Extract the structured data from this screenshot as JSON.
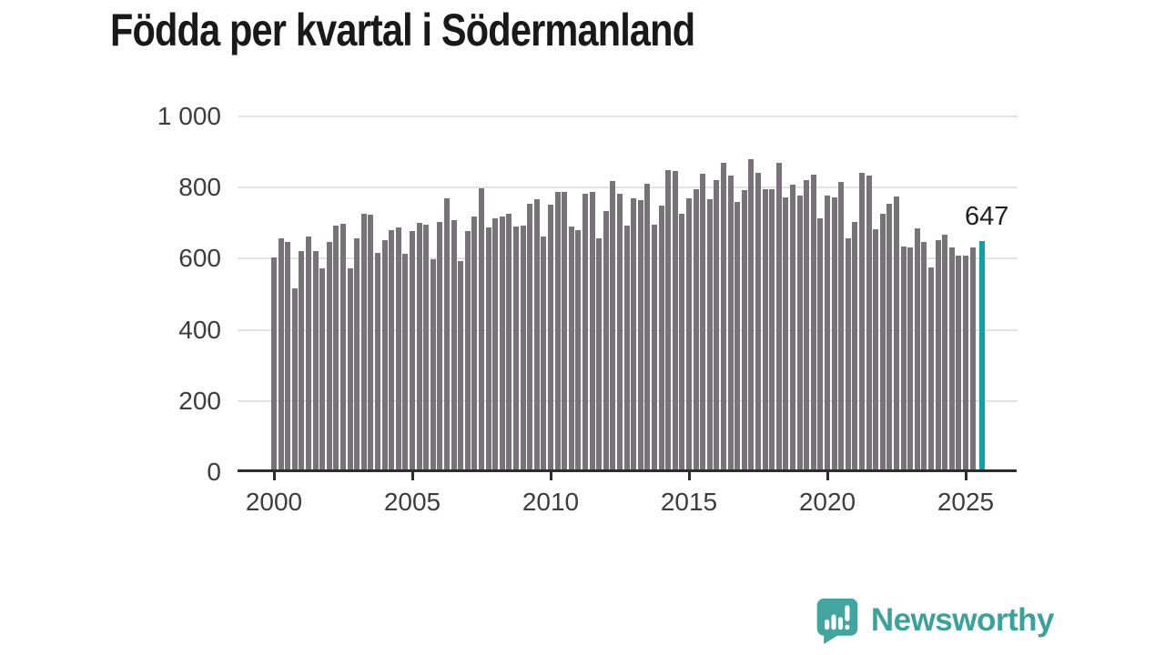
{
  "page": {
    "title": "Födda per kvartal i Södermanland"
  },
  "chart_data": {
    "type": "bar",
    "title": "Födda per kvartal i Södermanland",
    "x_period": "quarter",
    "x_start": "2000-Q1",
    "x_end": "2025-Q3",
    "xticks": [
      "2000",
      "2005",
      "2010",
      "2015",
      "2020",
      "2025"
    ],
    "xtick_years": [
      2000,
      2005,
      2010,
      2015,
      2020,
      2025
    ],
    "ytick_labels": [
      "1 000",
      "800",
      "600",
      "400",
      "200",
      "0"
    ],
    "ytick_values": [
      1000,
      800,
      600,
      400,
      200,
      0
    ],
    "ylim": [
      0,
      1000
    ],
    "grid": "horizontal",
    "legend": "none",
    "values": [
      600,
      655,
      645,
      515,
      620,
      660,
      620,
      570,
      645,
      690,
      695,
      570,
      655,
      725,
      722,
      615,
      650,
      677,
      685,
      612,
      674,
      697,
      694,
      597,
      701,
      768,
      705,
      590,
      674,
      715,
      795,
      686,
      710,
      717,
      723,
      687,
      690,
      751,
      764,
      659,
      750,
      785,
      786,
      688,
      678,
      779,
      786,
      654,
      732,
      816,
      780,
      691,
      768,
      761,
      807,
      692,
      746,
      846,
      843,
      723,
      768,
      794,
      836,
      764,
      818,
      866,
      832,
      757,
      791,
      877,
      840,
      793,
      793,
      868,
      769,
      806,
      776,
      819,
      833,
      711,
      774,
      771,
      813,
      655,
      701,
      838,
      832,
      680,
      723,
      751,
      773,
      633,
      628,
      683,
      644,
      573,
      649,
      666,
      630,
      605,
      605,
      630,
      647
    ],
    "highlight_last_bar": true,
    "last_value_label": "647",
    "colors": {
      "bar": "#787379",
      "highlight": "#0ca3a2",
      "grid": "#e3e3e3",
      "axis": "#2c2c2c",
      "tick_text": "#3d3d3d",
      "title_text": "#191919"
    }
  },
  "annotation": {
    "last_value": "647"
  },
  "footer": {
    "brand_name": "Newsworthy",
    "brand_color": "#3aa29d",
    "logo_icon": "newsworthy-speech-bubble-chart-icon",
    "logo_color": "#42a6a0"
  }
}
